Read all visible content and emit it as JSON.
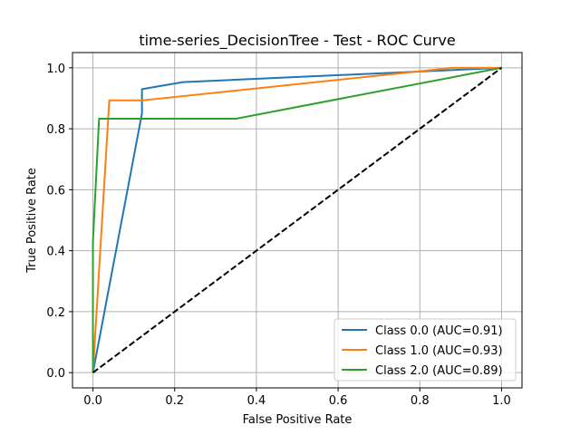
{
  "chart_data": {
    "type": "line",
    "title": "time-series_DecisionTree - Test - ROC Curve",
    "xlabel": "False Positive Rate",
    "ylabel": "True Positive Rate",
    "xlim": [
      -0.05,
      1.05
    ],
    "ylim": [
      -0.05,
      1.05
    ],
    "xticks": [
      "0.0",
      "0.2",
      "0.4",
      "0.6",
      "0.8",
      "1.0"
    ],
    "yticks": [
      "0.0",
      "0.2",
      "0.4",
      "0.6",
      "0.8",
      "1.0"
    ],
    "grid": true,
    "legend_position": "lower-right",
    "series": [
      {
        "name": "Class 0.0 (AUC=0.91)",
        "color": "#1f77b4",
        "x": [
          0.0,
          0.12,
          0.12,
          0.22,
          1.0
        ],
        "y": [
          0.0,
          0.85,
          0.93,
          0.953,
          1.0
        ]
      },
      {
        "name": "Class 1.0 (AUC=0.93)",
        "color": "#ff7f0e",
        "x": [
          0.0,
          0.04,
          0.12,
          0.88,
          1.0
        ],
        "y": [
          0.0,
          0.893,
          0.893,
          1.0,
          1.0
        ]
      },
      {
        "name": "Class 2.0 (AUC=0.89)",
        "color": "#2ca02c",
        "x": [
          0.0,
          0.0,
          0.015,
          0.35,
          1.0
        ],
        "y": [
          0.0,
          0.43,
          0.833,
          0.833,
          1.0
        ]
      }
    ],
    "reference_line": {
      "color": "#000000",
      "style": "dashed",
      "x": [
        0.0,
        1.0
      ],
      "y": [
        0.0,
        1.0
      ]
    }
  }
}
